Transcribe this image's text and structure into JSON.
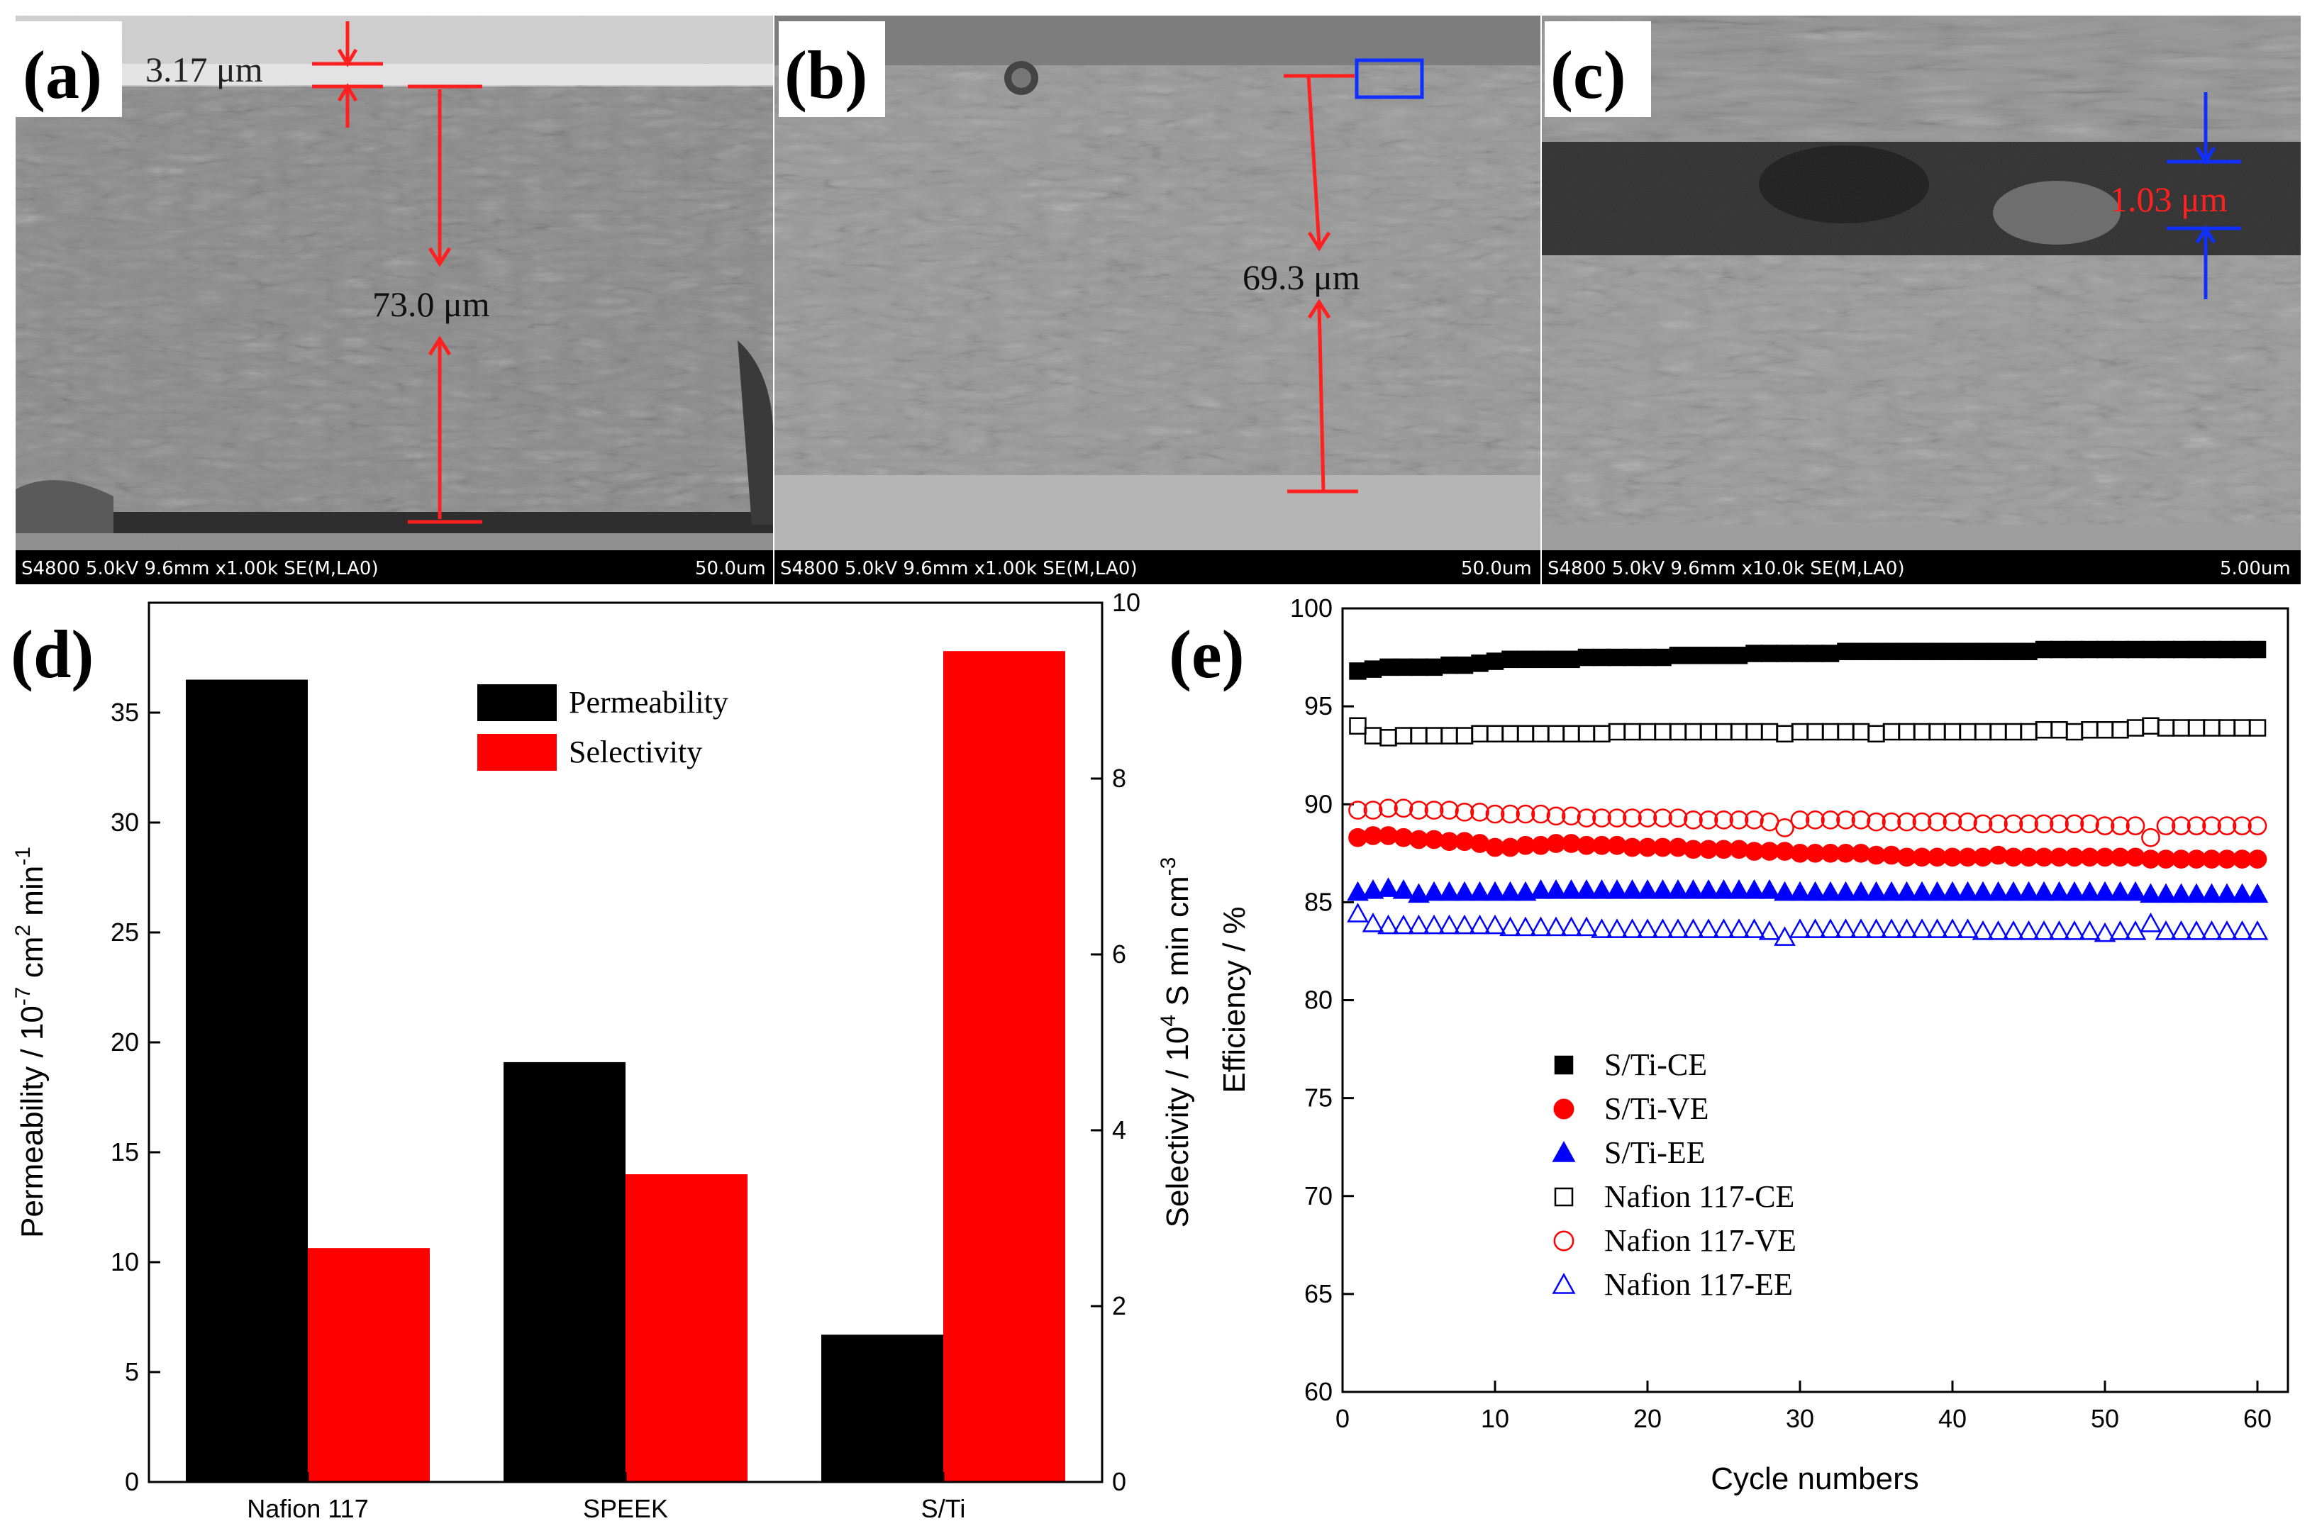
{
  "panels": {
    "a": {
      "letter": "(a)",
      "label_values": {
        "top": "3.17 μm",
        "main": "73.0 μm"
      },
      "info": "S4800 5.0kV 9.6mm x1.00k SE(M,LA0)",
      "scale": "50.0um"
    },
    "b": {
      "letter": "(b)",
      "label_values": {
        "main": "69.3 μm"
      },
      "info": "S4800 5.0kV 9.6mm x1.00k SE(M,LA0)",
      "scale": "50.0um"
    },
    "c": {
      "letter": "(c)",
      "label_values": {
        "main": "1.03 μm"
      },
      "info": "S4800 5.0kV 9.6mm x10.0k SE(M,LA0)",
      "scale": "5.00um"
    },
    "d": {
      "letter": "(d)"
    },
    "e": {
      "letter": "(e)"
    }
  },
  "colors": {
    "black": "#000000",
    "red": "#ff0000",
    "blue": "#0000ff",
    "sem_bg": "#8e8e8e"
  },
  "chart_data": [
    {
      "type": "bar",
      "title": "",
      "categories": [
        "Nafion 117",
        "SPEEK",
        "S/Ti"
      ],
      "series": [
        {
          "name": "Permeability",
          "axis": "left",
          "color": "#000000",
          "values": [
            36.5,
            19.1,
            6.7
          ]
        },
        {
          "name": "Selectivity",
          "axis": "right",
          "color": "#ff0000",
          "values": [
            2.66,
            3.5,
            9.45
          ]
        }
      ],
      "ylabel": "Permeability / 10-7 cm2 min-1",
      "ylabel_parts": {
        "a": "Permeability / 10",
        "b": "-7",
        "c": " cm",
        "d": "2",
        "e": " min",
        "f": "-1"
      },
      "y2label": "Selectivity / 104 S min cm-3",
      "y2label_parts": {
        "a": "Selectivity / 10",
        "b": "4",
        "c": " S min cm",
        "d": "-3"
      },
      "ylim": [
        0,
        40
      ],
      "yticks": [
        0,
        5,
        10,
        15,
        20,
        25,
        30,
        35
      ],
      "y2lim": [
        0,
        10
      ],
      "y2ticks": [
        0,
        2,
        4,
        6,
        8,
        10
      ],
      "legend": "top-center"
    },
    {
      "type": "scatter",
      "title": "",
      "xlabel": "Cycle numbers",
      "ylabel": "Efficiency / %",
      "xlim": [
        0,
        62
      ],
      "xticks": [
        0,
        10,
        20,
        30,
        40,
        50,
        60
      ],
      "ylim": [
        60,
        100
      ],
      "yticks": [
        60,
        65,
        70,
        75,
        80,
        85,
        90,
        95,
        100
      ],
      "legend": "lower-left",
      "series": [
        {
          "name": "S/Ti-CE",
          "marker": "square",
          "filled": true,
          "color": "#000000",
          "values": [
            96.8,
            96.9,
            97.0,
            97.0,
            97.0,
            97.0,
            97.1,
            97.1,
            97.2,
            97.3,
            97.4,
            97.4,
            97.4,
            97.4,
            97.4,
            97.5,
            97.5,
            97.5,
            97.5,
            97.5,
            97.5,
            97.6,
            97.6,
            97.6,
            97.6,
            97.6,
            97.7,
            97.7,
            97.7,
            97.7,
            97.7,
            97.7,
            97.8,
            97.8,
            97.8,
            97.8,
            97.8,
            97.8,
            97.8,
            97.8,
            97.8,
            97.8,
            97.8,
            97.8,
            97.8,
            97.9,
            97.9,
            97.9,
            97.9,
            97.9,
            97.9,
            97.9,
            97.9,
            97.9,
            97.9,
            97.9,
            97.9,
            97.9,
            97.9,
            97.9
          ]
        },
        {
          "name": "S/Ti-VE",
          "marker": "circle",
          "filled": true,
          "color": "#ff0000",
          "values": [
            88.3,
            88.4,
            88.4,
            88.3,
            88.2,
            88.2,
            88.1,
            88.1,
            88.0,
            87.8,
            87.8,
            87.9,
            87.9,
            88.0,
            88.0,
            87.9,
            87.9,
            87.9,
            87.8,
            87.8,
            87.8,
            87.8,
            87.7,
            87.7,
            87.7,
            87.7,
            87.6,
            87.6,
            87.6,
            87.5,
            87.5,
            87.5,
            87.5,
            87.5,
            87.4,
            87.4,
            87.3,
            87.3,
            87.3,
            87.3,
            87.3,
            87.3,
            87.4,
            87.3,
            87.3,
            87.3,
            87.3,
            87.3,
            87.3,
            87.3,
            87.3,
            87.3,
            87.2,
            87.2,
            87.2,
            87.2,
            87.2,
            87.2,
            87.2,
            87.2
          ]
        },
        {
          "name": "S/Ti-EE",
          "marker": "triangle",
          "filled": true,
          "color": "#0000ff",
          "values": [
            85.5,
            85.6,
            85.7,
            85.6,
            85.4,
            85.5,
            85.5,
            85.5,
            85.5,
            85.5,
            85.5,
            85.5,
            85.6,
            85.6,
            85.6,
            85.6,
            85.6,
            85.6,
            85.6,
            85.6,
            85.6,
            85.6,
            85.6,
            85.6,
            85.6,
            85.6,
            85.6,
            85.6,
            85.5,
            85.5,
            85.5,
            85.5,
            85.5,
            85.5,
            85.5,
            85.5,
            85.5,
            85.5,
            85.5,
            85.5,
            85.5,
            85.5,
            85.5,
            85.5,
            85.5,
            85.5,
            85.5,
            85.5,
            85.5,
            85.5,
            85.5,
            85.5,
            85.4,
            85.4,
            85.4,
            85.4,
            85.4,
            85.4,
            85.4,
            85.4
          ]
        },
        {
          "name": "Nafion 117-CE",
          "marker": "square",
          "filled": false,
          "color": "#000000",
          "values": [
            94.0,
            93.5,
            93.4,
            93.5,
            93.5,
            93.5,
            93.5,
            93.5,
            93.6,
            93.6,
            93.6,
            93.6,
            93.6,
            93.6,
            93.6,
            93.6,
            93.6,
            93.7,
            93.7,
            93.7,
            93.7,
            93.7,
            93.7,
            93.7,
            93.7,
            93.7,
            93.7,
            93.7,
            93.6,
            93.7,
            93.7,
            93.7,
            93.7,
            93.7,
            93.6,
            93.7,
            93.7,
            93.7,
            93.7,
            93.7,
            93.7,
            93.7,
            93.7,
            93.7,
            93.7,
            93.8,
            93.8,
            93.7,
            93.8,
            93.8,
            93.8,
            93.9,
            94.0,
            93.9,
            93.9,
            93.9,
            93.9,
            93.9,
            93.9,
            93.9
          ]
        },
        {
          "name": "Nafion 117-VE",
          "marker": "circle",
          "filled": false,
          "color": "#ff0000",
          "values": [
            89.7,
            89.7,
            89.8,
            89.8,
            89.7,
            89.7,
            89.7,
            89.6,
            89.6,
            89.5,
            89.5,
            89.5,
            89.5,
            89.4,
            89.4,
            89.3,
            89.3,
            89.3,
            89.3,
            89.3,
            89.3,
            89.3,
            89.2,
            89.2,
            89.2,
            89.2,
            89.2,
            89.1,
            88.8,
            89.2,
            89.2,
            89.2,
            89.2,
            89.2,
            89.1,
            89.1,
            89.1,
            89.1,
            89.1,
            89.1,
            89.1,
            89.0,
            89.0,
            89.0,
            89.0,
            89.0,
            89.0,
            89.0,
            89.0,
            88.9,
            88.9,
            88.9,
            88.3,
            88.9,
            88.9,
            88.9,
            88.9,
            88.9,
            88.9,
            88.9
          ]
        },
        {
          "name": "Nafion 117-EE",
          "marker": "triangle",
          "filled": false,
          "color": "#0000ff",
          "values": [
            84.4,
            83.9,
            83.8,
            83.8,
            83.8,
            83.8,
            83.8,
            83.8,
            83.8,
            83.8,
            83.7,
            83.7,
            83.7,
            83.7,
            83.7,
            83.7,
            83.6,
            83.6,
            83.6,
            83.6,
            83.6,
            83.6,
            83.6,
            83.6,
            83.6,
            83.6,
            83.6,
            83.5,
            83.2,
            83.6,
            83.6,
            83.6,
            83.6,
            83.6,
            83.6,
            83.6,
            83.6,
            83.6,
            83.6,
            83.6,
            83.6,
            83.5,
            83.5,
            83.5,
            83.5,
            83.5,
            83.5,
            83.5,
            83.5,
            83.4,
            83.5,
            83.5,
            83.9,
            83.5,
            83.5,
            83.5,
            83.5,
            83.5,
            83.5,
            83.5
          ]
        }
      ]
    }
  ]
}
